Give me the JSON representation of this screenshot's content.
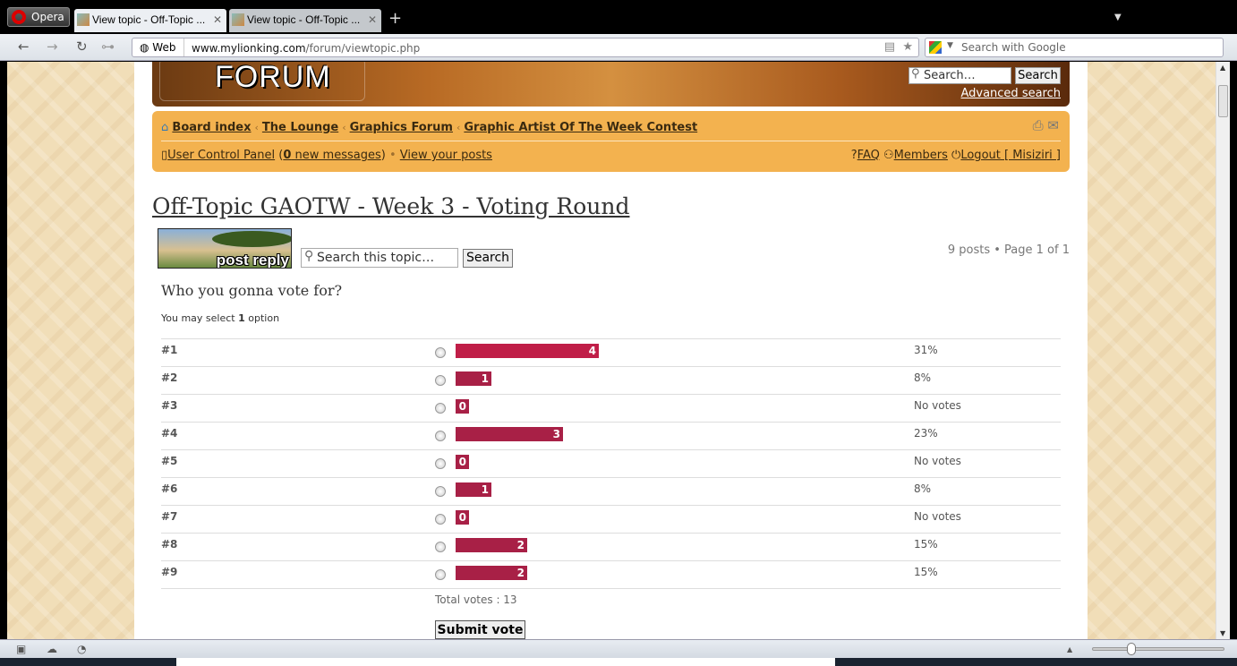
{
  "browser": {
    "menu_label": "Opera",
    "tabs": [
      {
        "title": "View topic - Off-Topic ...",
        "active": true
      },
      {
        "title": "View topic - Off-Topic ...",
        "active": false
      }
    ],
    "new_tab": "+",
    "address_scheme_label": "Web",
    "url_domain": "www.mylionking.com",
    "url_path": "/forum/viewtopic.php",
    "search_placeholder": "Search with Google"
  },
  "header": {
    "logo_text": "FORUM",
    "search_placeholder": "Search…",
    "search_button": "Search",
    "advanced_search": "Advanced search"
  },
  "navbar": {
    "breadcrumbs": [
      "Board index",
      "The Lounge",
      "Graphics Forum",
      "Graphic Artist Of The Week Contest"
    ],
    "ucp": "User Control Panel",
    "new_messages_count": "0",
    "new_messages_label": "new messages",
    "view_posts": "View your posts",
    "faq": "FAQ",
    "members": "Members",
    "logout": "Logout [ Misiziri ]"
  },
  "topic": {
    "title": "Off-Topic GAOTW - Week 3 - Voting Round",
    "post_reply": "post reply",
    "search_placeholder": "Search this topic…",
    "search_button": "Search",
    "pagination": "9 posts • Page 1 of 1"
  },
  "poll": {
    "question": "Who you gonna vote for?",
    "select_prefix": "You may select",
    "select_count": "1",
    "select_suffix": "option",
    "bar_colors": {
      "leader": "#c01e48",
      "default": "#a82046"
    },
    "options": [
      {
        "label": "#1",
        "votes": 4,
        "percent": "31%"
      },
      {
        "label": "#2",
        "votes": 1,
        "percent": "8%"
      },
      {
        "label": "#3",
        "votes": 0,
        "percent": "No votes"
      },
      {
        "label": "#4",
        "votes": 3,
        "percent": "23%"
      },
      {
        "label": "#5",
        "votes": 0,
        "percent": "No votes"
      },
      {
        "label": "#6",
        "votes": 1,
        "percent": "8%"
      },
      {
        "label": "#7",
        "votes": 0,
        "percent": "No votes"
      },
      {
        "label": "#8",
        "votes": 2,
        "percent": "15%"
      },
      {
        "label": "#9",
        "votes": 2,
        "percent": "15%"
      }
    ],
    "total_votes": "Total votes : 13",
    "submit": "Submit vote"
  }
}
